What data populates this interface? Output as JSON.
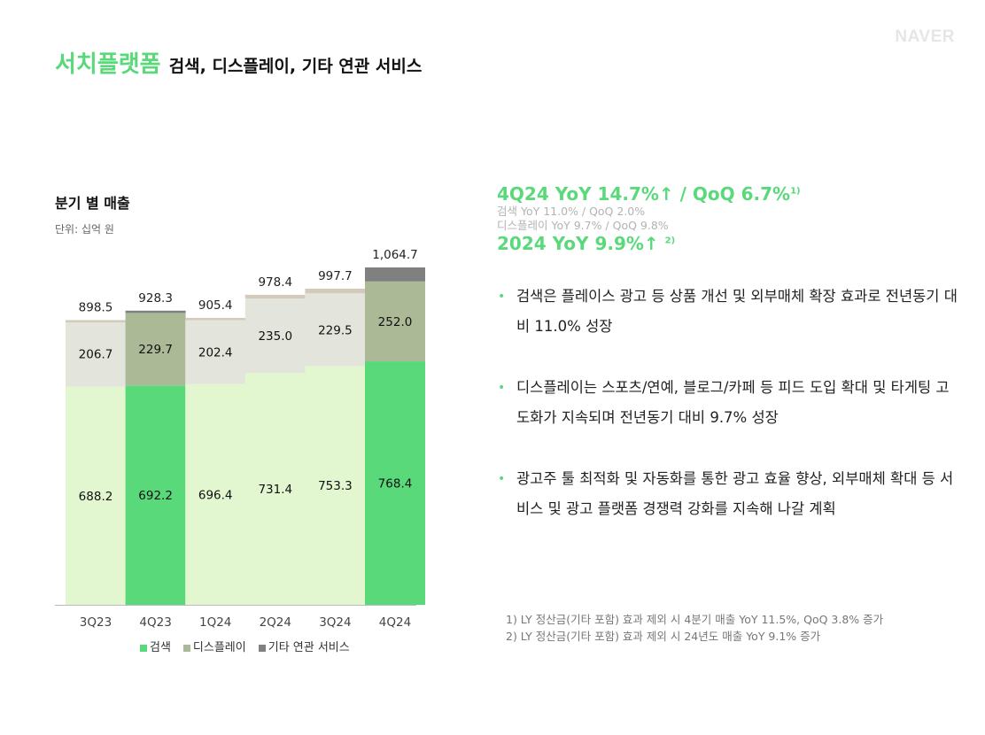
{
  "header": {
    "logo": "NAVER",
    "title_main": "서치플랫폼",
    "title_sub": "검색, 디스플레이, 기타 연관 서비스"
  },
  "chart_data": {
    "type": "stacked-bar",
    "title": "분기 별 매출",
    "unit": "단위: 십억 원",
    "categories": [
      "3Q23",
      "4Q23",
      "1Q24",
      "2Q24",
      "3Q24",
      "4Q24"
    ],
    "highlighted": [
      "4Q23",
      "4Q24"
    ],
    "series": [
      {
        "name": "검색",
        "values": [
          688.2,
          692.2,
          696.4,
          731.4,
          753.3,
          768.4
        ],
        "color": "#e2f7cf",
        "highlight_color": "#5ad97b"
      },
      {
        "name": "디스플레이",
        "values": [
          206.7,
          229.7,
          202.4,
          235.0,
          229.5,
          252.0
        ],
        "color": "#e3e5dc",
        "highlight_color": "#abb996"
      },
      {
        "name": "기타 연관 서비스",
        "values": [
          3.6,
          6.4,
          6.6,
          12.0,
          14.9,
          44.3
        ],
        "color": "#d4cab9",
        "highlight_color": "#808080"
      }
    ],
    "totals": [
      "898.5",
      "928.3",
      "905.4",
      "978.4",
      "997.7",
      "1,064.7"
    ],
    "segment_labels": {
      "검색": [
        "688.2",
        "692.2",
        "696.4",
        "731.4",
        "753.3",
        "768.4"
      ],
      "디스플레이": [
        "206.7",
        "229.7",
        "202.4",
        "235.0",
        "229.5",
        "252.0"
      ]
    },
    "ylim": [
      0,
      1064.7
    ],
    "grid": false,
    "legend": "bottom"
  },
  "kpi": {
    "headline": "4Q24 YoY 14.7%↑ / QoQ 6.7%",
    "headline_note": "1)",
    "search": "검색 YoY 11.0% / QoQ 2.0%",
    "display": "디스플레이 YoY 9.7% / QoQ 9.8%",
    "annual": "2024 YoY 9.9%↑",
    "annual_note": "2)"
  },
  "bullets": [
    "검색은 플레이스 광고 등 상품 개선 및 외부매체 확장 효과로 전년동기 대비 11.0% 성장",
    "디스플레이는 스포츠/연예, 블로그/카페 등 피드 도입 확대 및 타게팅 고도화가 지속되며 전년동기 대비 9.7% 성장",
    "광고주 툴 최적화 및 자동화를 통한 광고 효율 향상, 외부매체 확대 등 서비스 및 광고 플랫폼 경쟁력 강화를 지속해 나갈 계획"
  ],
  "footnotes": [
    "1) LY 정산금(기타 포함) 효과 제외 시 4분기 매출 YoY 11.5%, QoQ 3.8% 증가",
    "2) LY 정산금(기타 포함) 효과 제외 시 24년도 매출 YoY 9.1% 증가"
  ]
}
